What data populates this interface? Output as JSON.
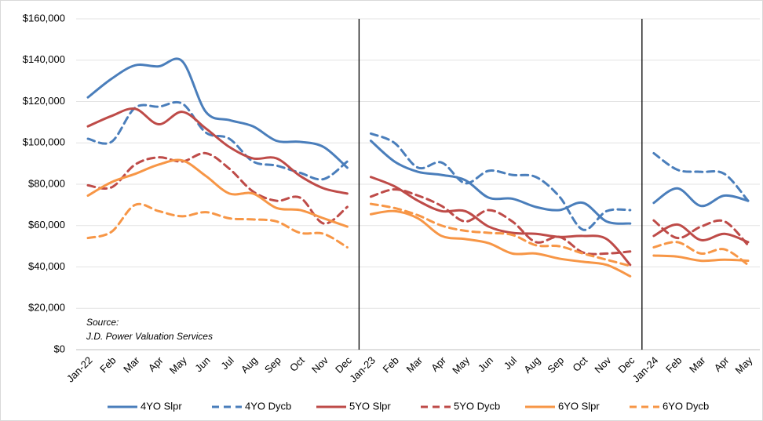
{
  "chart_data": {
    "type": "line",
    "categories": [
      "Jan-22",
      "Feb",
      "Mar",
      "Apr",
      "May",
      "Jun",
      "Jul",
      "Aug",
      "Sep",
      "Oct",
      "Nov",
      "Dec",
      "Jan-23",
      "Feb",
      "Mar",
      "Apr",
      "May",
      "Jun",
      "Jul",
      "Aug",
      "Sep",
      "Oct",
      "Nov",
      "Dec",
      "Jan-24",
      "Feb",
      "Mar",
      "Apr",
      "May"
    ],
    "series": [
      {
        "name": "4YO Slpr",
        "color": "#4a7ebb",
        "style": "solid",
        "values": [
          122000,
          131000,
          137500,
          137000,
          139500,
          115000,
          111000,
          108000,
          101000,
          100500,
          98000,
          88000,
          101000,
          91000,
          86000,
          84500,
          82000,
          73500,
          73000,
          69000,
          67500,
          71000,
          62000,
          61000,
          71000,
          78000,
          69500,
          74500,
          72000
        ]
      },
      {
        "name": "4YO Dycb",
        "color": "#4a7ebb",
        "style": "dashed",
        "values": [
          102000,
          100500,
          117000,
          117500,
          119000,
          105000,
          102000,
          91000,
          89000,
          85500,
          82500,
          91000,
          104500,
          100000,
          88000,
          90500,
          80500,
          86500,
          84500,
          83500,
          74000,
          58000,
          67000,
          67500,
          95000,
          87000,
          86000,
          85000,
          72000
        ]
      },
      {
        "name": "5YO Slpr",
        "color": "#be4b48",
        "style": "solid",
        "values": [
          108000,
          113000,
          116500,
          109000,
          115000,
          107000,
          98000,
          92500,
          92500,
          84000,
          78000,
          75500,
          83500,
          79000,
          72000,
          67000,
          67000,
          59500,
          56500,
          56000,
          54500,
          55000,
          53500,
          41000,
          55000,
          60500,
          53000,
          56000,
          52000
        ]
      },
      {
        "name": "5YO Dycb",
        "color": "#be4b48",
        "style": "dashed",
        "values": [
          79500,
          78500,
          89500,
          93000,
          91000,
          95000,
          87500,
          76500,
          72000,
          73500,
          61000,
          69000,
          74000,
          77500,
          74500,
          69500,
          62000,
          67500,
          62000,
          52000,
          54500,
          47000,
          46500,
          47500,
          62500,
          54000,
          59500,
          62000,
          50500
        ]
      },
      {
        "name": "6YO Slpr",
        "color": "#f79646",
        "style": "solid",
        "values": [
          74500,
          81000,
          85000,
          89500,
          91500,
          84000,
          75500,
          75500,
          68500,
          67500,
          63500,
          59500,
          65500,
          67000,
          63500,
          55000,
          53500,
          51500,
          46500,
          46500,
          44000,
          42500,
          41000,
          35500,
          45500,
          45000,
          43000,
          43500,
          43000
        ]
      },
      {
        "name": "6YO Dycb",
        "color": "#f79646",
        "style": "dashed",
        "values": [
          54000,
          57000,
          70000,
          67000,
          64500,
          66500,
          63500,
          63000,
          62000,
          56500,
          56000,
          49500,
          70500,
          68500,
          65000,
          60000,
          57500,
          56500,
          55500,
          50500,
          50000,
          46500,
          43500,
          40500,
          49500,
          52000,
          46500,
          48500,
          41000
        ]
      }
    ],
    "ylim": [
      0,
      160000
    ],
    "yticks": [
      {
        "value": 0,
        "label": "$0"
      },
      {
        "value": 20000,
        "label": "$20,000"
      },
      {
        "value": 40000,
        "label": "$40,000"
      },
      {
        "value": 60000,
        "label": "$60,000"
      },
      {
        "value": 80000,
        "label": "$80,000"
      },
      {
        "value": 100000,
        "label": "$100,000"
      },
      {
        "value": 120000,
        "label": "$120,000"
      },
      {
        "value": 140000,
        "label": "$140,000"
      },
      {
        "value": 160000,
        "label": "$160,000"
      }
    ],
    "grid": true,
    "legend": "bottom",
    "annotations": [
      "Source:",
      "J.D. Power Valuation Services"
    ]
  }
}
